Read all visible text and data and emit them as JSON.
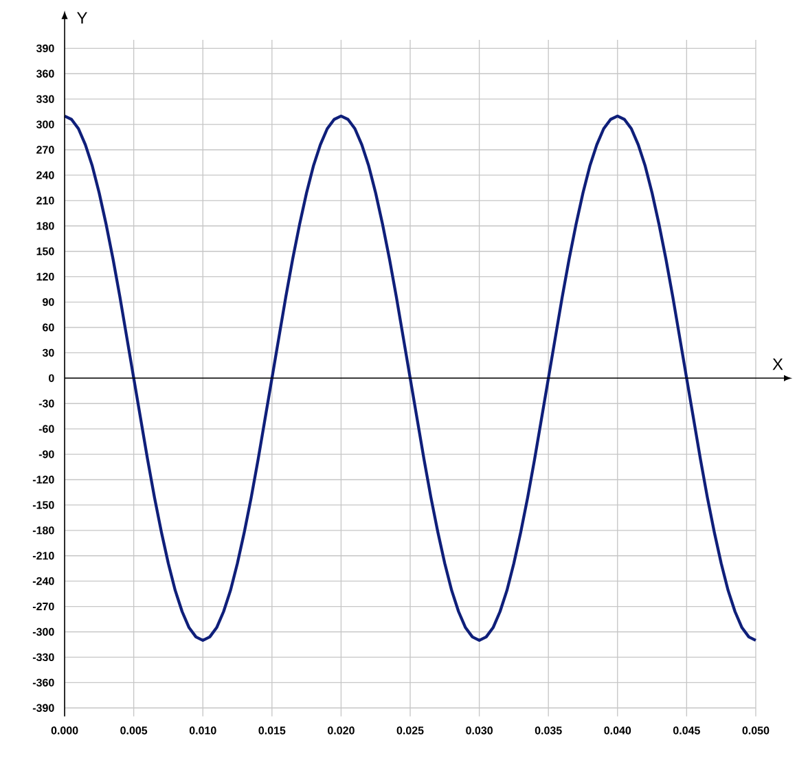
{
  "chart_data": {
    "type": "line",
    "xlabel": "X",
    "ylabel": "Y",
    "x": [
      0,
      0.0005,
      0.001,
      0.0015,
      0.002,
      0.0025,
      0.003,
      0.0035,
      0.004,
      0.0045,
      0.005,
      0.0055,
      0.006,
      0.0065,
      0.007,
      0.0075,
      0.008,
      0.0085,
      0.009,
      0.0095,
      0.01,
      0.0105,
      0.011,
      0.0115,
      0.012,
      0.0125,
      0.013,
      0.0135,
      0.014,
      0.0145,
      0.015,
      0.0155,
      0.016,
      0.0165,
      0.017,
      0.0175,
      0.018,
      0.0185,
      0.019,
      0.0195,
      0.02,
      0.0205,
      0.021,
      0.0215,
      0.022,
      0.0225,
      0.023,
      0.0235,
      0.024,
      0.0245,
      0.025,
      0.0255,
      0.026,
      0.0265,
      0.027,
      0.0275,
      0.028,
      0.0285,
      0.029,
      0.0295,
      0.03,
      0.0305,
      0.031,
      0.0315,
      0.032,
      0.0325,
      0.033,
      0.0335,
      0.034,
      0.0345,
      0.035,
      0.0355,
      0.036,
      0.0365,
      0.037,
      0.0375,
      0.038,
      0.0385,
      0.039,
      0.0395,
      0.04,
      0.0405,
      0.041,
      0.0415,
      0.042,
      0.0425,
      0.043,
      0.0435,
      0.044,
      0.0445,
      0.045,
      0.0455,
      0.046,
      0.0465,
      0.047,
      0.0475,
      0.048,
      0.0485,
      0.049,
      0.0495,
      0.05
    ],
    "series": [
      {
        "color": "#0f1f7a",
        "values": [
          310,
          306,
          295,
          276,
          251,
          219,
          182,
          141,
          96,
          48,
          0,
          -48,
          -96,
          -141,
          -182,
          -219,
          -251,
          -276,
          -295,
          -306,
          -310,
          -306,
          -295,
          -276,
          -251,
          -219,
          -182,
          -141,
          -96,
          -48,
          0,
          48,
          96,
          141,
          182,
          219,
          251,
          276,
          295,
          306,
          310,
          306,
          295,
          276,
          251,
          219,
          182,
          141,
          96,
          48,
          0,
          -48,
          -96,
          -141,
          -182,
          -219,
          -251,
          -276,
          -295,
          -306,
          -310,
          -306,
          -295,
          -276,
          -251,
          -219,
          -182,
          -141,
          -96,
          -48,
          0,
          48,
          96,
          141,
          182,
          219,
          251,
          276,
          295,
          306,
          310,
          306,
          295,
          276,
          251,
          219,
          182,
          141,
          96,
          48,
          0,
          -48,
          -96,
          -141,
          -182,
          -219,
          -251,
          -276,
          -295,
          -306,
          -310
        ]
      }
    ],
    "xlim": [
      0,
      0.05
    ],
    "ylim": [
      -400,
      400
    ],
    "xticks": [
      {
        "value": 0,
        "label": "0.000"
      },
      0.005,
      {
        "value": 0.01,
        "label": "0.010"
      },
      0.015,
      {
        "value": 0.02,
        "label": "0.020"
      },
      0.025,
      {
        "value": 0.03,
        "label": "0.030"
      },
      0.035,
      {
        "value": 0.04,
        "label": "0.040"
      },
      0.045,
      {
        "value": 0.05,
        "label": "0.050"
      }
    ],
    "yticks": [
      -390,
      -360,
      -330,
      -300,
      -270,
      -240,
      -210,
      -180,
      -150,
      -120,
      -90,
      -60,
      -30,
      0,
      30,
      60,
      90,
      120,
      150,
      180,
      210,
      240,
      270,
      300,
      330,
      360,
      390
    ],
    "grid": true,
    "marker": "none",
    "line_style": "solid"
  }
}
